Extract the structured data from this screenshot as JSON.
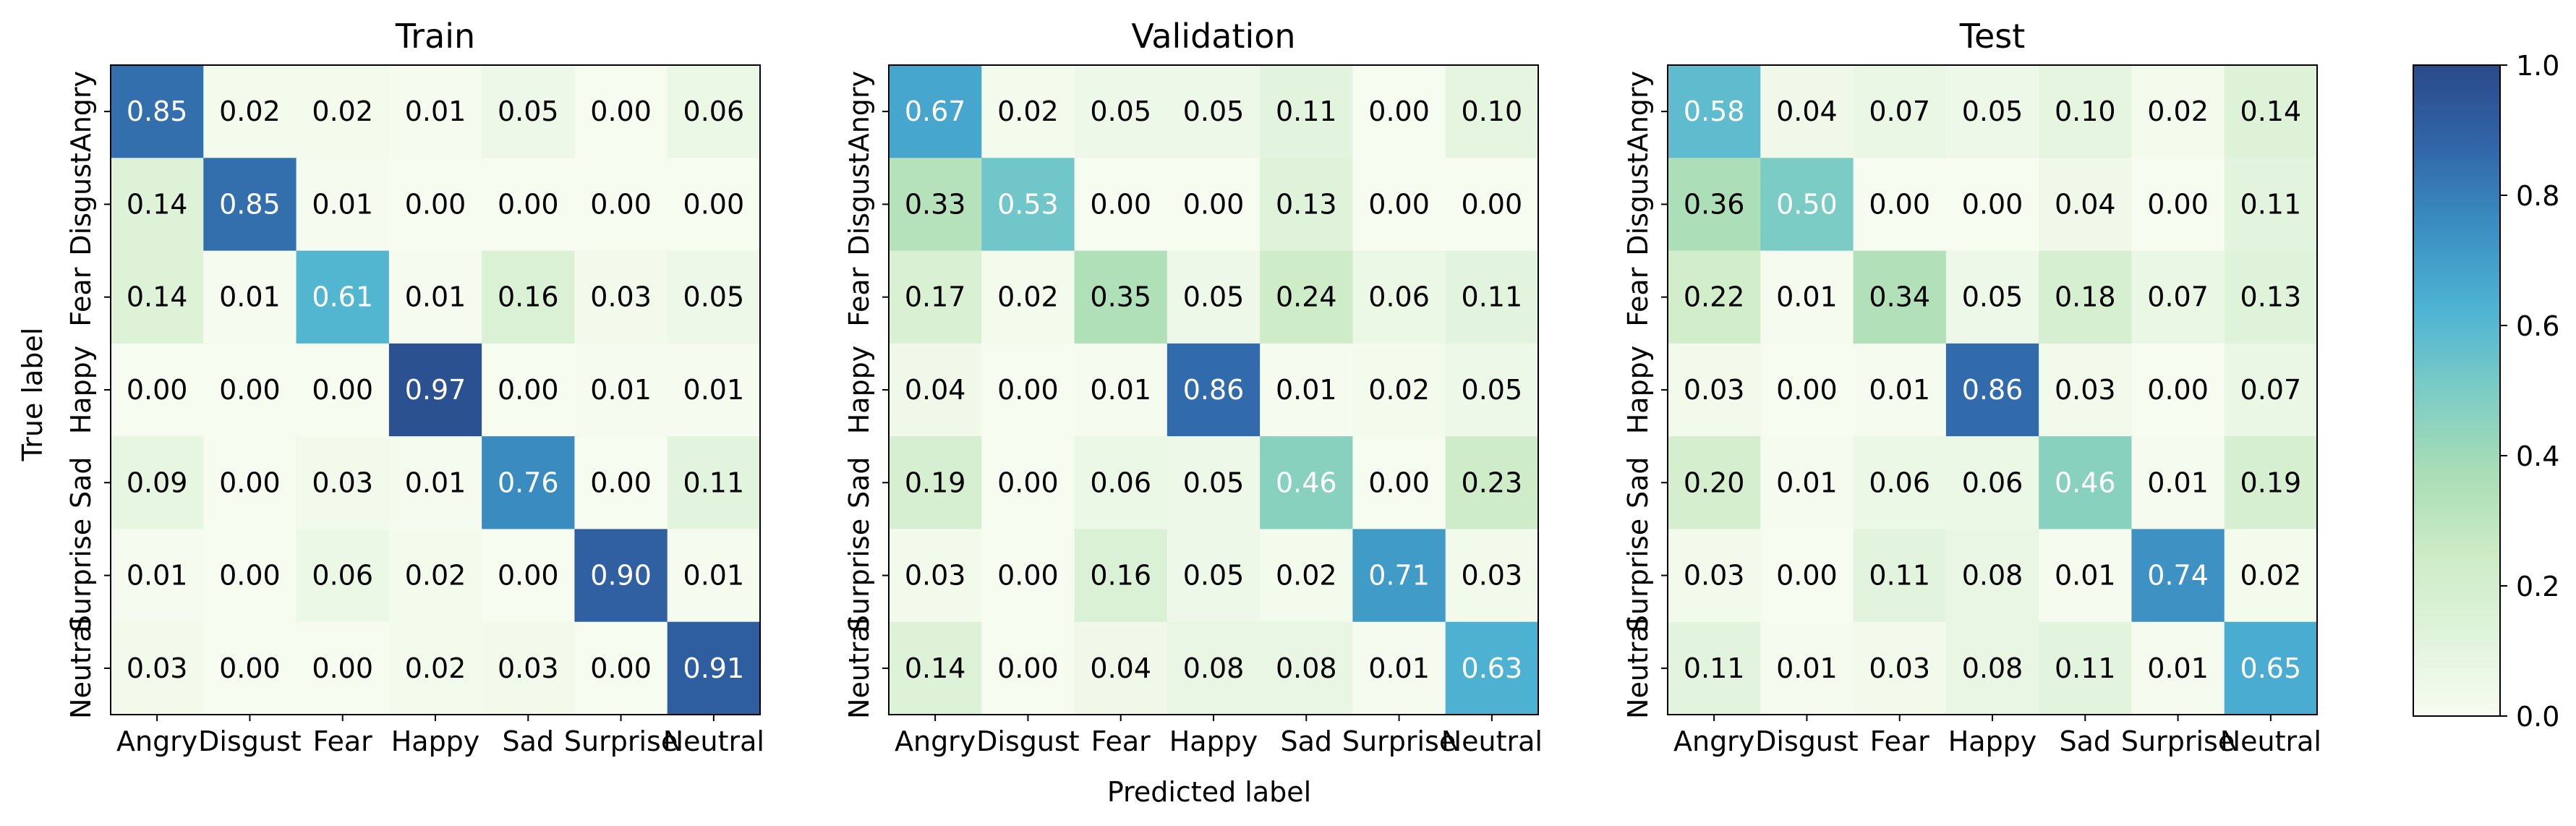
{
  "chart_data": {
    "type": "heatmap",
    "colormap": "GnBu",
    "xlabel": "Predicted label",
    "ylabel": "True label",
    "class_labels": [
      "Angry",
      "Disgust",
      "Fear",
      "Happy",
      "Sad",
      "Surprise",
      "Neutral"
    ],
    "value_range": [
      0.0,
      1.0
    ],
    "colorbar_ticks": [
      "0.0",
      "0.2",
      "0.4",
      "0.6",
      "0.8",
      "1.0"
    ],
    "panels": [
      {
        "title": "Train",
        "matrix": [
          [
            0.85,
            0.02,
            0.02,
            0.01,
            0.05,
            0.0,
            0.06
          ],
          [
            0.14,
            0.85,
            0.01,
            0.0,
            0.0,
            0.0,
            0.0
          ],
          [
            0.14,
            0.01,
            0.61,
            0.01,
            0.16,
            0.03,
            0.05
          ],
          [
            0.0,
            0.0,
            0.0,
            0.97,
            0.0,
            0.01,
            0.01
          ],
          [
            0.09,
            0.0,
            0.03,
            0.01,
            0.76,
            0.0,
            0.11
          ],
          [
            0.01,
            0.0,
            0.06,
            0.02,
            0.0,
            0.9,
            0.01
          ],
          [
            0.03,
            0.0,
            0.0,
            0.02,
            0.03,
            0.0,
            0.91
          ]
        ]
      },
      {
        "title": "Validation",
        "matrix": [
          [
            0.67,
            0.02,
            0.05,
            0.05,
            0.11,
            0.0,
            0.1
          ],
          [
            0.33,
            0.53,
            0.0,
            0.0,
            0.13,
            0.0,
            0.0
          ],
          [
            0.17,
            0.02,
            0.35,
            0.05,
            0.24,
            0.06,
            0.11
          ],
          [
            0.04,
            0.0,
            0.01,
            0.86,
            0.01,
            0.02,
            0.05
          ],
          [
            0.19,
            0.0,
            0.06,
            0.05,
            0.46,
            0.0,
            0.23
          ],
          [
            0.03,
            0.0,
            0.16,
            0.05,
            0.02,
            0.71,
            0.03
          ],
          [
            0.14,
            0.0,
            0.04,
            0.08,
            0.08,
            0.01,
            0.63
          ]
        ]
      },
      {
        "title": "Test",
        "matrix": [
          [
            0.58,
            0.04,
            0.07,
            0.05,
            0.1,
            0.02,
            0.14
          ],
          [
            0.36,
            0.5,
            0.0,
            0.0,
            0.04,
            0.0,
            0.11
          ],
          [
            0.22,
            0.01,
            0.34,
            0.05,
            0.18,
            0.07,
            0.13
          ],
          [
            0.03,
            0.0,
            0.01,
            0.86,
            0.03,
            0.0,
            0.07
          ],
          [
            0.2,
            0.01,
            0.06,
            0.06,
            0.46,
            0.01,
            0.19
          ],
          [
            0.03,
            0.0,
            0.11,
            0.08,
            0.01,
            0.74,
            0.02
          ],
          [
            0.11,
            0.01,
            0.03,
            0.08,
            0.11,
            0.01,
            0.65
          ]
        ]
      }
    ]
  }
}
